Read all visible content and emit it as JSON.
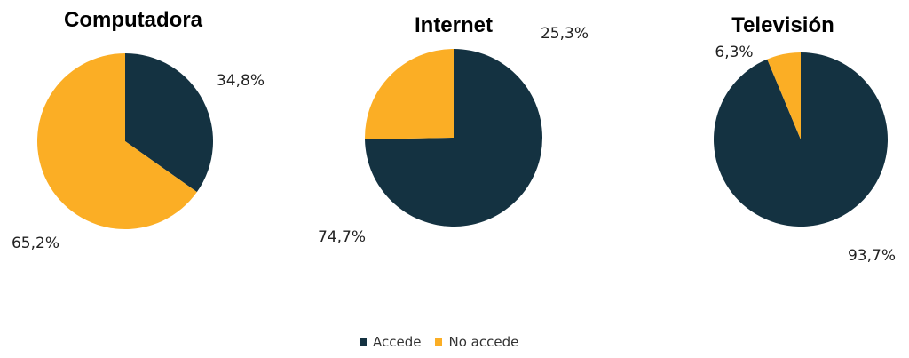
{
  "chart_data": [
    {
      "type": "pie",
      "title": "Computadora",
      "slices": [
        {
          "name": "Accede",
          "value": 34.8,
          "label": "34,8%"
        },
        {
          "name": "No accede",
          "value": 65.2,
          "label": "65,2%"
        }
      ]
    },
    {
      "type": "pie",
      "title": "Internet",
      "slices": [
        {
          "name": "Accede",
          "value": 74.7,
          "label": "74,7%"
        },
        {
          "name": "No accede",
          "value": 25.3,
          "label": "25,3%"
        }
      ]
    },
    {
      "type": "pie",
      "title": "Televisión",
      "slices": [
        {
          "name": "Accede",
          "value": 93.7,
          "label": "93,7%"
        },
        {
          "name": "No accede",
          "value": 6.3,
          "label": "6,3%"
        }
      ]
    }
  ],
  "legend": {
    "placement": "bottom-center",
    "items": [
      {
        "label": "Accede",
        "color": "#143241"
      },
      {
        "label": "No accede",
        "color": "#FBAE25"
      }
    ]
  }
}
